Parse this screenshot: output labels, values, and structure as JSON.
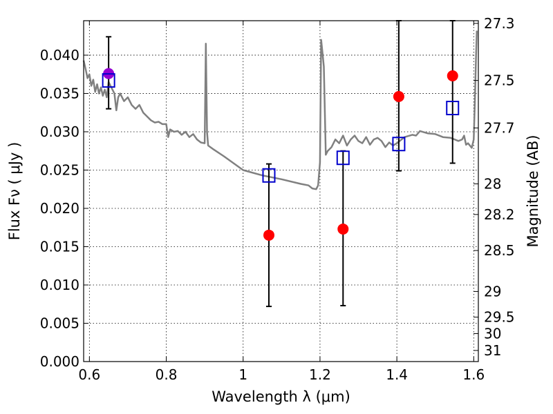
{
  "chart_data": {
    "type": "scatter",
    "title": "",
    "xlabel": "Wavelength  λ (μm)",
    "ylabel": "Flux  Fν  ( μJy )",
    "y2label": "Magnitude (AB)",
    "xlim": [
      0.585,
      1.612
    ],
    "ylim": [
      0.0,
      0.0445
    ],
    "grid": true,
    "x_ticks": [
      {
        "value": 0.6,
        "label": "0.6"
      },
      {
        "value": 0.8,
        "label": "0.8"
      },
      {
        "value": 1.0,
        "label": "1"
      },
      {
        "value": 1.2,
        "label": "1.2"
      },
      {
        "value": 1.4,
        "label": "1.4"
      },
      {
        "value": 1.6,
        "label": "1.6"
      }
    ],
    "y_ticks": [
      {
        "value": 0.0,
        "label": "0.000"
      },
      {
        "value": 0.005,
        "label": "0.005"
      },
      {
        "value": 0.01,
        "label": "0.010"
      },
      {
        "value": 0.015,
        "label": "0.015"
      },
      {
        "value": 0.02,
        "label": "0.020"
      },
      {
        "value": 0.025,
        "label": "0.025"
      },
      {
        "value": 0.03,
        "label": "0.030"
      },
      {
        "value": 0.035,
        "label": "0.035"
      },
      {
        "value": 0.04,
        "label": "0.040"
      }
    ],
    "y2_ticks": [
      {
        "label": "27.3",
        "flux": 0.04415
      },
      {
        "label": "27.5",
        "flux": 0.0367
      },
      {
        "label": "27.7",
        "flux": 0.0305
      },
      {
        "label": "28",
        "flux": 0.0232
      },
      {
        "label": "28.2",
        "flux": 0.0192
      },
      {
        "label": "28.5",
        "flux": 0.0145
      },
      {
        "label": "29",
        "flux": 0.00915
      },
      {
        "label": "29.5",
        "flux": 0.0058
      },
      {
        "label": "30",
        "flux": 0.00365
      },
      {
        "label": "31",
        "flux": 0.00145
      }
    ],
    "series": [
      {
        "type": "line",
        "color": "#808080",
        "x": [
          0.585,
          0.59,
          0.595,
          0.6,
          0.605,
          0.61,
          0.615,
          0.62,
          0.625,
          0.63,
          0.635,
          0.64,
          0.645,
          0.65,
          0.655,
          0.66,
          0.665,
          0.67,
          0.675,
          0.68,
          0.69,
          0.7,
          0.71,
          0.72,
          0.73,
          0.74,
          0.75,
          0.76,
          0.77,
          0.78,
          0.79,
          0.8,
          0.805,
          0.81,
          0.82,
          0.83,
          0.84,
          0.85,
          0.86,
          0.87,
          0.88,
          0.89,
          0.9,
          0.903,
          0.906,
          0.909,
          0.912,
          0.92,
          0.95,
          1.0,
          1.05,
          1.1,
          1.15,
          1.17,
          1.18,
          1.19,
          1.195,
          1.2,
          1.203,
          1.206,
          1.21,
          1.215,
          1.22,
          1.23,
          1.24,
          1.25,
          1.26,
          1.27,
          1.28,
          1.29,
          1.3,
          1.31,
          1.32,
          1.33,
          1.34,
          1.35,
          1.36,
          1.37,
          1.38,
          1.39,
          1.4,
          1.42,
          1.44,
          1.45,
          1.46,
          1.48,
          1.5,
          1.52,
          1.54,
          1.56,
          1.57,
          1.575,
          1.58,
          1.585,
          1.59,
          1.595,
          1.6,
          1.603,
          1.606,
          1.608
        ],
        "y": [
          0.0393,
          0.0382,
          0.037,
          0.0375,
          0.036,
          0.0368,
          0.0352,
          0.0362,
          0.035,
          0.0358,
          0.0347,
          0.0355,
          0.0345,
          0.0365,
          0.036,
          0.0355,
          0.035,
          0.0328,
          0.0345,
          0.035,
          0.034,
          0.0345,
          0.0335,
          0.033,
          0.0335,
          0.0325,
          0.032,
          0.0315,
          0.0312,
          0.0313,
          0.031,
          0.031,
          0.0293,
          0.0303,
          0.03,
          0.0301,
          0.0296,
          0.03,
          0.0293,
          0.0297,
          0.029,
          0.0286,
          0.0285,
          0.0415,
          0.03,
          0.0282,
          0.0281,
          0.0278,
          0.0268,
          0.025,
          0.0243,
          0.0238,
          0.0232,
          0.023,
          0.0226,
          0.0225,
          0.023,
          0.026,
          0.042,
          0.0405,
          0.0385,
          0.027,
          0.0275,
          0.028,
          0.029,
          0.0285,
          0.0295,
          0.0282,
          0.029,
          0.0295,
          0.0288,
          0.0285,
          0.0293,
          0.0283,
          0.029,
          0.0292,
          0.0288,
          0.028,
          0.0286,
          0.0282,
          0.0285,
          0.0293,
          0.0296,
          0.0295,
          0.0301,
          0.0298,
          0.0297,
          0.0293,
          0.0292,
          0.0288,
          0.029,
          0.0295,
          0.0283,
          0.0285,
          0.0282,
          0.0279,
          0.029,
          0.034,
          0.04,
          0.0432
        ]
      },
      {
        "type": "scatter",
        "marker": "circle",
        "color": "#ff0000",
        "points": [
          {
            "x": 1.067,
            "y": 0.0165
          },
          {
            "x": 1.26,
            "y": 0.0173
          },
          {
            "x": 1.405,
            "y": 0.0346
          },
          {
            "x": 1.545,
            "y": 0.0373
          }
        ]
      },
      {
        "type": "scatter",
        "marker": "circle",
        "color": "#9400d3",
        "points": [
          {
            "x": 0.65,
            "y": 0.0376
          }
        ]
      },
      {
        "type": "scatter",
        "marker": "square-open",
        "color": "#0000cc",
        "points": [
          {
            "x": 0.65,
            "y": 0.0367,
            "err_low": 0.033,
            "err_high": 0.0424
          },
          {
            "x": 1.067,
            "y": 0.0243,
            "err_low": 0.0072,
            "err_high": 0.0258
          },
          {
            "x": 1.26,
            "y": 0.0266,
            "err_low": 0.0073,
            "err_high": 0.0275
          },
          {
            "x": 1.405,
            "y": 0.0284,
            "err_low": 0.0249,
            "err_high": 0.0445
          },
          {
            "x": 1.545,
            "y": 0.0331,
            "err_low": 0.0259,
            "err_high": 0.0445
          }
        ]
      }
    ]
  }
}
